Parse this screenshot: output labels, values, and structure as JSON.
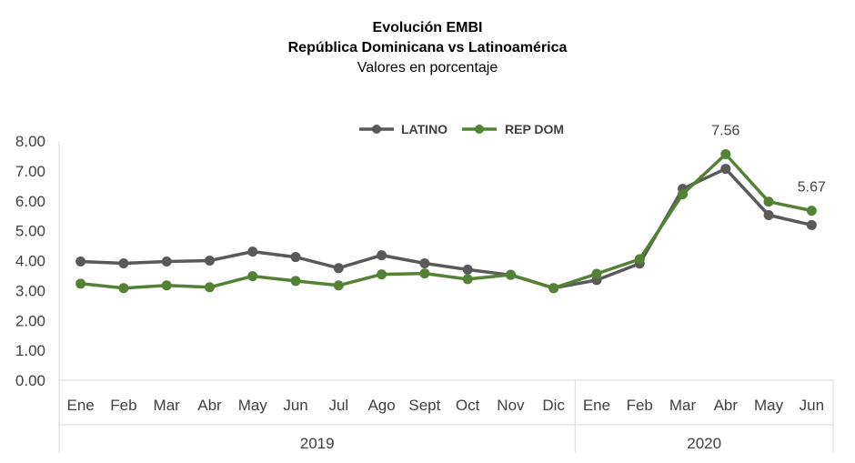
{
  "chart_data": {
    "type": "line",
    "title": "Evolución EMBI",
    "subtitle": "República Dominicana vs Latinoamérica",
    "subtitle2": "Valores en porcentaje",
    "categories": [
      "Ene",
      "Feb",
      "Mar",
      "Abr",
      "May",
      "Jun",
      "Jul",
      "Ago",
      "Sept",
      "Oct",
      "Nov",
      "Dic",
      "Ene",
      "Feb",
      "Mar",
      "Abr",
      "May",
      "Jun"
    ],
    "groups": [
      {
        "label": "2019",
        "count": 12
      },
      {
        "label": "2020",
        "count": 6
      }
    ],
    "y_ticks": [
      "0.00",
      "1.00",
      "2.00",
      "3.00",
      "4.00",
      "5.00",
      "6.00",
      "7.00",
      "8.00"
    ],
    "ylim": [
      0,
      8
    ],
    "legend_position": "top",
    "grid": false,
    "series": [
      {
        "name": "LATINO",
        "color": "#595959",
        "values": [
          3.97,
          3.91,
          3.97,
          4.0,
          4.3,
          4.12,
          3.75,
          4.18,
          3.91,
          3.7,
          3.52,
          3.08,
          3.35,
          3.9,
          6.4,
          7.07,
          5.52,
          5.19
        ]
      },
      {
        "name": "REP DOM",
        "color": "#548235",
        "values": [
          3.23,
          3.08,
          3.17,
          3.11,
          3.48,
          3.32,
          3.17,
          3.54,
          3.57,
          3.38,
          3.53,
          3.08,
          3.56,
          4.05,
          6.22,
          7.56,
          5.97,
          5.67
        ]
      }
    ],
    "annotations": [
      {
        "series": 1,
        "index": 15,
        "text": "7.56"
      },
      {
        "series": 1,
        "index": 17,
        "text": "5.67"
      }
    ]
  }
}
